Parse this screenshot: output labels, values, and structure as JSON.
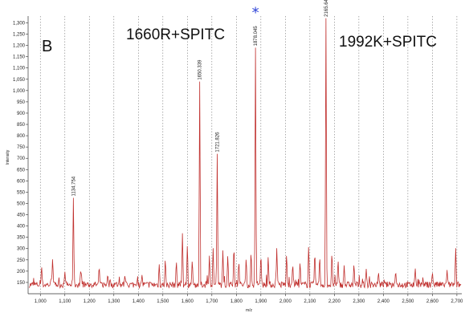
{
  "chart_data": {
    "type": "line",
    "panel_letter": "B",
    "xlabel": "m/z",
    "ylabel": "Intensity",
    "xlim": [
      950,
      2720
    ],
    "ylim": [
      100,
      1330
    ],
    "x_ticks": [
      1000,
      1100,
      1200,
      1300,
      1400,
      1500,
      1600,
      1700,
      1800,
      1900,
      2000,
      2100,
      2200,
      2300,
      2400,
      2500,
      2600,
      2700
    ],
    "x_tick_labels": [
      "1,000",
      "1,100",
      "1,200",
      "1,300",
      "1,400",
      "1,500",
      "1,600",
      "1,700",
      "1,800",
      "1,900",
      "2,000",
      "2,100",
      "2,200",
      "2,300",
      "2,400",
      "2,500",
      "2,600",
      "2,700"
    ],
    "y_ticks": [
      150,
      200,
      250,
      300,
      350,
      400,
      450,
      500,
      550,
      600,
      650,
      700,
      750,
      800,
      850,
      900,
      950,
      1000,
      1050,
      1100,
      1150,
      1200,
      1250,
      1300
    ],
    "y_tick_labels": [
      "150",
      "200",
      "250",
      "300",
      "350",
      "400",
      "450",
      "500",
      "550",
      "600",
      "650",
      "700",
      "750",
      "800",
      "850",
      "900",
      "950",
      "1,000",
      "1,050",
      "1,100",
      "1,150",
      "1,200",
      "1,250",
      "1,300"
    ],
    "grid": "vertical-dashed",
    "baseline": 140,
    "line_color": "#c0302e",
    "star_color": "#2a3fd6",
    "annotations": [
      {
        "text": "1660R+SPITC"
      },
      {
        "text": "1992K+SPITC"
      }
    ],
    "peaks": [
      {
        "x": 1134.754,
        "y": 525,
        "label": "1134.754",
        "starred": false
      },
      {
        "x": 1650.339,
        "y": 1040,
        "label": "1650.339",
        "starred": false
      },
      {
        "x": 1721.826,
        "y": 720,
        "label": "1721.826",
        "starred": false
      },
      {
        "x": 1878.045,
        "y": 1190,
        "label": "1878.045",
        "starred": true,
        "star": "*"
      },
      {
        "x": 2165.642,
        "y": 1320,
        "label": "2165.642",
        "starred": true,
        "star": "*"
      }
    ],
    "minor_peaks": [
      {
        "x": 1050,
        "y": 265
      },
      {
        "x": 1005,
        "y": 230
      },
      {
        "x": 1100,
        "y": 200
      },
      {
        "x": 1165,
        "y": 215
      },
      {
        "x": 1240,
        "y": 230
      },
      {
        "x": 1275,
        "y": 190
      },
      {
        "x": 1345,
        "y": 185
      },
      {
        "x": 1415,
        "y": 185
      },
      {
        "x": 1485,
        "y": 235
      },
      {
        "x": 1510,
        "y": 265
      },
      {
        "x": 1555,
        "y": 255
      },
      {
        "x": 1580,
        "y": 380
      },
      {
        "x": 1600,
        "y": 330
      },
      {
        "x": 1620,
        "y": 260
      },
      {
        "x": 1690,
        "y": 275
      },
      {
        "x": 1705,
        "y": 310
      },
      {
        "x": 1745,
        "y": 300
      },
      {
        "x": 1765,
        "y": 280
      },
      {
        "x": 1790,
        "y": 330
      },
      {
        "x": 1810,
        "y": 255
      },
      {
        "x": 1840,
        "y": 270
      },
      {
        "x": 1860,
        "y": 305
      },
      {
        "x": 1900,
        "y": 290
      },
      {
        "x": 1930,
        "y": 275
      },
      {
        "x": 1965,
        "y": 310
      },
      {
        "x": 2005,
        "y": 290
      },
      {
        "x": 2030,
        "y": 240
      },
      {
        "x": 2060,
        "y": 250
      },
      {
        "x": 2095,
        "y": 325
      },
      {
        "x": 2120,
        "y": 300
      },
      {
        "x": 2140,
        "y": 280
      },
      {
        "x": 2190,
        "y": 300
      },
      {
        "x": 2215,
        "y": 260
      },
      {
        "x": 2240,
        "y": 230
      },
      {
        "x": 2280,
        "y": 240
      },
      {
        "x": 2330,
        "y": 210
      },
      {
        "x": 2380,
        "y": 200
      },
      {
        "x": 2450,
        "y": 205
      },
      {
        "x": 2530,
        "y": 215
      },
      {
        "x": 2600,
        "y": 200
      },
      {
        "x": 2660,
        "y": 205
      },
      {
        "x": 2695,
        "y": 310
      }
    ]
  }
}
